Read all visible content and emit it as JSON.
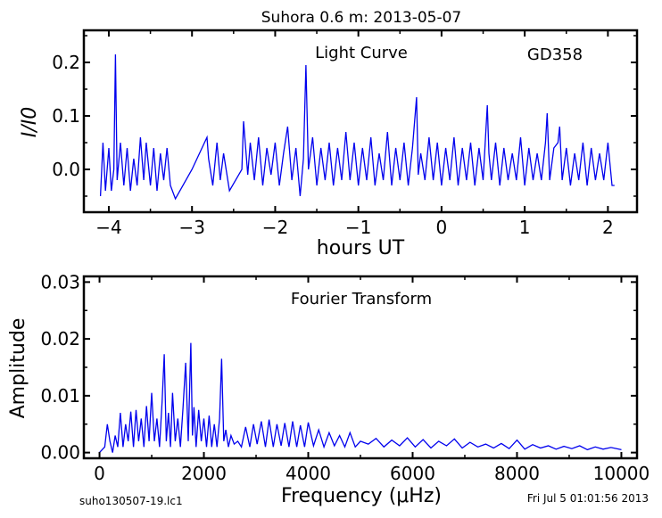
{
  "figure": {
    "title": "Suhora 0.6 m:  2013-05-07",
    "footer_left": "suho130507-19.lc1",
    "footer_right": "Fri Jul  5 01:01:56 2013",
    "line_color": "#0000ee"
  },
  "chart_data": [
    {
      "type": "line",
      "title": "Light Curve",
      "annotation": "GD358",
      "xlabel": "hours UT",
      "ylabel": "I/I0",
      "xlim": [
        -4.3,
        2.35
      ],
      "ylim": [
        -0.08,
        0.26
      ],
      "xticks": [
        -4,
        -3,
        -2,
        -1,
        0,
        1,
        2
      ],
      "xtick_labels": [
        "−4",
        "−3",
        "−2",
        "−1",
        "0",
        "1",
        "2"
      ],
      "yticks": [
        0.0,
        0.1,
        0.2
      ],
      "ytick_labels": [
        "0.0",
        "0.1",
        "0.2"
      ],
      "grid": false,
      "series": [
        {
          "x": [
            -4.1,
            -4.07,
            -4.04,
            -4.0,
            -3.97,
            -3.94,
            -3.92,
            -3.9,
            -3.86,
            -3.82,
            -3.78,
            -3.74,
            -3.7,
            -3.66,
            -3.62,
            -3.58,
            -3.55,
            -3.5,
            -3.46,
            -3.42,
            -3.38,
            -3.34,
            -3.3,
            -3.26,
            -3.2,
            -3.0,
            -2.82,
            -2.8,
            -2.75,
            -2.7,
            -2.66,
            -2.62,
            -2.6,
            -2.55,
            -2.4,
            -2.38,
            -2.33,
            -2.3,
            -2.25,
            -2.2,
            -2.15,
            -2.1,
            -2.05,
            -2.0,
            -1.95,
            -1.9,
            -1.85,
            -1.8,
            -1.75,
            -1.7,
            -1.66,
            -1.63,
            -1.6,
            -1.55,
            -1.5,
            -1.45,
            -1.4,
            -1.35,
            -1.3,
            -1.25,
            -1.2,
            -1.15,
            -1.1,
            -1.05,
            -1.0,
            -0.95,
            -0.9,
            -0.85,
            -0.8,
            -0.75,
            -0.7,
            -0.65,
            -0.6,
            -0.55,
            -0.5,
            -0.45,
            -0.4,
            -0.35,
            -0.3,
            -0.28,
            -0.25,
            -0.2,
            -0.15,
            -0.1,
            -0.05,
            0.0,
            0.05,
            0.1,
            0.15,
            0.2,
            0.25,
            0.3,
            0.35,
            0.4,
            0.45,
            0.5,
            0.55,
            0.57,
            0.6,
            0.65,
            0.7,
            0.75,
            0.8,
            0.85,
            0.9,
            0.95,
            1.0,
            1.05,
            1.1,
            1.15,
            1.2,
            1.25,
            1.27,
            1.3,
            1.35,
            1.4,
            1.42,
            1.45,
            1.5,
            1.55,
            1.6,
            1.65,
            1.7,
            1.75,
            1.8,
            1.85,
            1.9,
            1.95,
            2.0,
            2.05,
            2.08
          ],
          "y": [
            -0.05,
            0.05,
            -0.04,
            0.04,
            -0.04,
            0.0,
            0.215,
            -0.02,
            0.05,
            -0.03,
            0.04,
            -0.04,
            0.02,
            -0.03,
            0.06,
            -0.02,
            0.05,
            -0.03,
            0.04,
            -0.04,
            0.03,
            -0.02,
            0.04,
            -0.03,
            -0.055,
            0.0,
            0.06,
            0.02,
            -0.03,
            0.05,
            -0.02,
            0.03,
            0.01,
            -0.04,
            0.0,
            0.09,
            -0.01,
            0.05,
            -0.02,
            0.06,
            -0.03,
            0.04,
            -0.01,
            0.05,
            -0.03,
            0.03,
            0.08,
            -0.02,
            0.04,
            -0.05,
            0.02,
            0.195,
            0.0,
            0.06,
            -0.03,
            0.04,
            -0.02,
            0.05,
            -0.03,
            0.04,
            -0.02,
            0.07,
            -0.02,
            0.05,
            -0.03,
            0.04,
            -0.02,
            0.06,
            -0.03,
            0.03,
            -0.02,
            0.07,
            -0.03,
            0.04,
            -0.02,
            0.05,
            -0.03,
            0.04,
            0.135,
            -0.01,
            0.03,
            -0.02,
            0.06,
            -0.02,
            0.05,
            -0.03,
            0.04,
            -0.02,
            0.06,
            -0.03,
            0.04,
            -0.02,
            0.05,
            -0.03,
            0.04,
            -0.02,
            0.12,
            0.03,
            -0.02,
            0.05,
            -0.03,
            0.04,
            -0.02,
            0.03,
            -0.02,
            0.06,
            -0.03,
            0.04,
            -0.02,
            0.03,
            -0.02,
            0.05,
            0.105,
            -0.02,
            0.04,
            0.05,
            0.08,
            -0.02,
            0.04,
            -0.03,
            0.03,
            -0.02,
            0.05,
            -0.03,
            0.04,
            -0.02,
            0.03,
            -0.02,
            0.05,
            -0.03,
            -0.03
          ]
        }
      ]
    },
    {
      "type": "line",
      "title": "Fourier Transform",
      "xlabel": "Frequency (μHz)",
      "ylabel": "Amplitude",
      "xlim": [
        -300,
        10300
      ],
      "ylim": [
        -0.001,
        0.031
      ],
      "xticks": [
        0,
        2000,
        4000,
        6000,
        8000,
        10000
      ],
      "xtick_labels": [
        "0",
        "2000",
        "4000",
        "6000",
        "8000",
        "10000"
      ],
      "yticks": [
        0.0,
        0.01,
        0.02,
        0.03
      ],
      "ytick_labels": [
        "0.00",
        "0.01",
        "0.02",
        "0.03"
      ],
      "grid": false,
      "series": [
        {
          "x": [
            0,
            100,
            150,
            200,
            250,
            300,
            350,
            400,
            450,
            500,
            550,
            600,
            650,
            700,
            750,
            800,
            850,
            900,
            950,
            1000,
            1050,
            1100,
            1150,
            1200,
            1240,
            1280,
            1320,
            1360,
            1400,
            1450,
            1500,
            1550,
            1600,
            1650,
            1700,
            1750,
            1780,
            1810,
            1850,
            1900,
            1950,
            2000,
            2050,
            2100,
            2150,
            2200,
            2250,
            2300,
            2340,
            2380,
            2420,
            2470,
            2520,
            2580,
            2650,
            2720,
            2800,
            2880,
            2950,
            3020,
            3100,
            3180,
            3250,
            3330,
            3400,
            3480,
            3550,
            3630,
            3700,
            3780,
            3850,
            3930,
            4000,
            4100,
            4200,
            4300,
            4400,
            4500,
            4600,
            4700,
            4800,
            4900,
            5000,
            5150,
            5300,
            5450,
            5600,
            5750,
            5900,
            6050,
            6200,
            6350,
            6500,
            6650,
            6800,
            6950,
            7100,
            7250,
            7400,
            7550,
            7700,
            7850,
            8000,
            8150,
            8300,
            8450,
            8600,
            8750,
            8900,
            9050,
            9200,
            9350,
            9500,
            9650,
            9800,
            10000
          ],
          "y": [
            0.0,
            0.001,
            0.005,
            0.002,
            0.0,
            0.003,
            0.001,
            0.007,
            0.001,
            0.005,
            0.002,
            0.0072,
            0.001,
            0.0075,
            0.002,
            0.006,
            0.001,
            0.0082,
            0.002,
            0.0105,
            0.002,
            0.006,
            0.001,
            0.009,
            0.0173,
            0.002,
            0.007,
            0.001,
            0.0105,
            0.002,
            0.006,
            0.001,
            0.0078,
            0.0158,
            0.002,
            0.0193,
            0.003,
            0.008,
            0.001,
            0.0075,
            0.002,
            0.006,
            0.001,
            0.0065,
            0.001,
            0.005,
            0.001,
            0.006,
            0.0165,
            0.002,
            0.004,
            0.001,
            0.003,
            0.0015,
            0.002,
            0.001,
            0.0045,
            0.001,
            0.005,
            0.0015,
            0.0055,
            0.001,
            0.0058,
            0.001,
            0.005,
            0.0012,
            0.0052,
            0.001,
            0.0055,
            0.001,
            0.0048,
            0.001,
            0.0053,
            0.0012,
            0.004,
            0.001,
            0.0035,
            0.0012,
            0.003,
            0.001,
            0.0035,
            0.001,
            0.002,
            0.0015,
            0.0025,
            0.001,
            0.0022,
            0.0012,
            0.0026,
            0.001,
            0.0023,
            0.0008,
            0.002,
            0.0012,
            0.0024,
            0.0008,
            0.0018,
            0.001,
            0.0015,
            0.0008,
            0.0016,
            0.0007,
            0.0022,
            0.0006,
            0.0014,
            0.0008,
            0.0012,
            0.0006,
            0.0011,
            0.0007,
            0.0012,
            0.0005,
            0.001,
            0.0006,
            0.0009,
            0.0005
          ]
        }
      ]
    }
  ]
}
